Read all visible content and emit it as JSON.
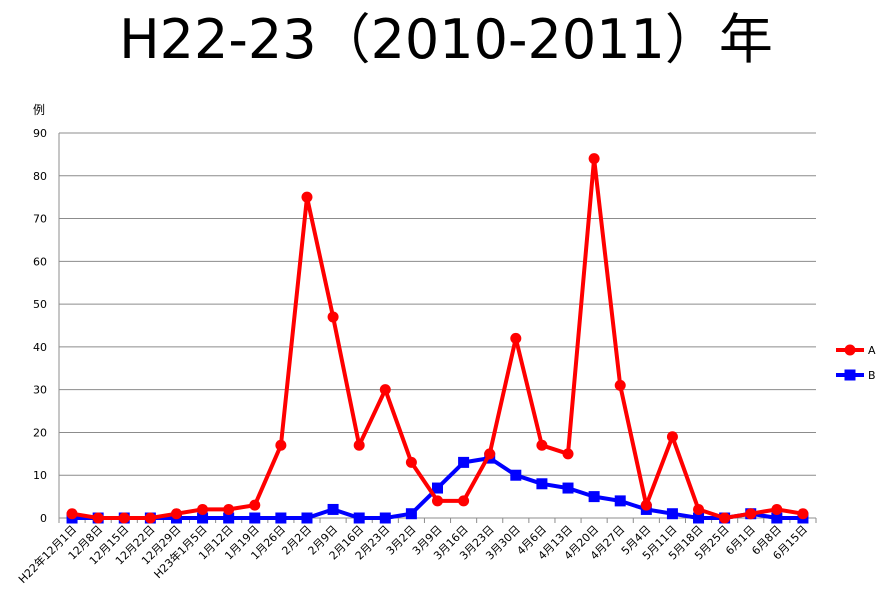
{
  "title": "H22-23（2010-2011）年",
  "chart_data": {
    "type": "line",
    "title": "H22-23（2010-2011）年",
    "ylabel": "例",
    "xlabel": "",
    "ylim": [
      0,
      90
    ],
    "yticks": [
      0,
      10,
      20,
      30,
      40,
      50,
      60,
      70,
      80,
      90
    ],
    "grid": true,
    "legend_position": "right",
    "categories": [
      "H22年12月1日",
      "12月8日",
      "12月15日",
      "12月22日",
      "12月29日",
      "H23年1月5日",
      "1月12日",
      "1月19日",
      "1月26日",
      "2月2日",
      "2月9日",
      "2月16日",
      "2月23日",
      "3月2日",
      "3月9日",
      "3月16日",
      "3月23日",
      "3月30日",
      "4月6日",
      "4月13日",
      "4月20日",
      "4月27日",
      "5月4日",
      "5月11日",
      "5月18日",
      "5月25日",
      "6月1日",
      "6月8日",
      "6月15日"
    ],
    "series": [
      {
        "name": "A",
        "color": "#ff0000",
        "marker": "circle",
        "values": [
          1,
          0,
          0,
          0,
          1,
          2,
          2,
          3,
          17,
          75,
          47,
          17,
          30,
          13,
          4,
          4,
          15,
          42,
          17,
          15,
          84,
          31,
          3,
          19,
          2,
          0,
          1,
          2,
          1
        ]
      },
      {
        "name": "B",
        "color": "#0000ff",
        "marker": "square",
        "values": [
          0,
          0,
          0,
          0,
          0,
          0,
          0,
          0,
          0,
          0,
          2,
          0,
          0,
          1,
          7,
          13,
          14,
          10,
          8,
          7,
          5,
          4,
          2,
          1,
          0,
          0,
          1,
          0,
          0
        ]
      }
    ]
  }
}
